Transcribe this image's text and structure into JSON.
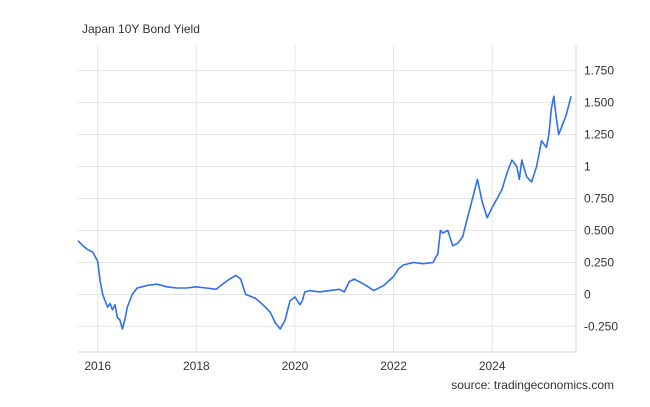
{
  "title": "Japan 10Y Bond Yield",
  "source": "source: tradingeconomics.com",
  "chart_data": {
    "type": "line",
    "title": "Japan 10Y Bond Yield",
    "xlabel": "",
    "ylabel": "",
    "xlim": [
      2015.6,
      2025.7
    ],
    "ylim": [
      -0.45,
      1.95
    ],
    "x_ticks": [
      2016,
      2018,
      2020,
      2022,
      2024
    ],
    "x_tick_labels": [
      "2016",
      "2018",
      "2020",
      "2022",
      "2024"
    ],
    "y_ticks": [
      -0.25,
      0,
      0.25,
      0.5,
      0.75,
      1,
      1.25,
      1.5,
      1.75
    ],
    "y_tick_labels": [
      "-0.250",
      "0",
      "0.250",
      "0.500",
      "0.750",
      "1",
      "1.250",
      "1.500",
      "1.750"
    ],
    "grid": true,
    "line_color": "#2f6ff0",
    "series": [
      {
        "x": [
          2015.6,
          2015.7,
          2015.8,
          2015.9,
          2016.0,
          2016.05,
          2016.1,
          2016.15,
          2016.2,
          2016.25,
          2016.3,
          2016.35,
          2016.4,
          2016.45,
          2016.5,
          2016.55,
          2016.6,
          2016.7,
          2016.8,
          2016.9,
          2017.0,
          2017.2,
          2017.4,
          2017.6,
          2017.8,
          2018.0,
          2018.2,
          2018.4,
          2018.6,
          2018.8,
          2018.9,
          2019.0,
          2019.2,
          2019.35,
          2019.5,
          2019.6,
          2019.7,
          2019.8,
          2019.9,
          2020.0,
          2020.1,
          2020.15,
          2020.2,
          2020.3,
          2020.5,
          2020.7,
          2020.9,
          2021.0,
          2021.1,
          2021.2,
          2021.4,
          2021.6,
          2021.8,
          2022.0,
          2022.1,
          2022.2,
          2022.4,
          2022.6,
          2022.8,
          2022.9,
          2022.95,
          2023.0,
          2023.1,
          2023.2,
          2023.3,
          2023.4,
          2023.5,
          2023.6,
          2023.7,
          2023.8,
          2023.9,
          2024.0,
          2024.1,
          2024.2,
          2024.3,
          2024.4,
          2024.5,
          2024.55,
          2024.6,
          2024.7,
          2024.8,
          2024.9,
          2025.0,
          2025.1,
          2025.15,
          2025.2,
          2025.25,
          2025.3,
          2025.35,
          2025.4,
          2025.5,
          2025.6
        ],
        "y": [
          0.42,
          0.38,
          0.35,
          0.33,
          0.26,
          0.1,
          0.0,
          -0.05,
          -0.1,
          -0.07,
          -0.12,
          -0.08,
          -0.18,
          -0.2,
          -0.27,
          -0.2,
          -0.1,
          0.0,
          0.05,
          0.06,
          0.07,
          0.08,
          0.06,
          0.05,
          0.05,
          0.06,
          0.05,
          0.04,
          0.1,
          0.15,
          0.12,
          0.0,
          -0.03,
          -0.08,
          -0.14,
          -0.22,
          -0.27,
          -0.2,
          -0.05,
          -0.02,
          -0.08,
          -0.05,
          0.02,
          0.03,
          0.02,
          0.03,
          0.04,
          0.02,
          0.1,
          0.12,
          0.08,
          0.03,
          0.07,
          0.14,
          0.2,
          0.23,
          0.25,
          0.24,
          0.25,
          0.32,
          0.5,
          0.48,
          0.5,
          0.38,
          0.4,
          0.45,
          0.6,
          0.75,
          0.9,
          0.72,
          0.6,
          0.68,
          0.75,
          0.82,
          0.95,
          1.05,
          1.0,
          0.9,
          1.05,
          0.92,
          0.88,
          1.0,
          1.2,
          1.15,
          1.25,
          1.45,
          1.55,
          1.38,
          1.25,
          1.3,
          1.4,
          1.55
        ]
      }
    ]
  }
}
